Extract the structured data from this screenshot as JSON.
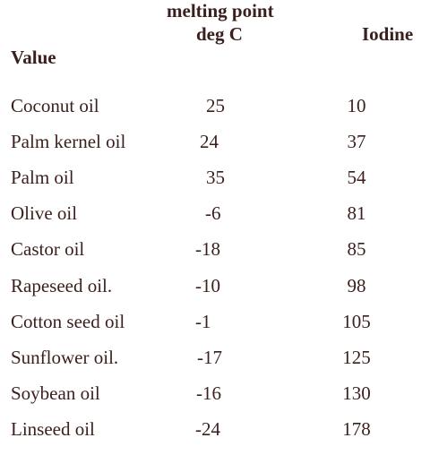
{
  "header": {
    "melting_point_line1": "melting point",
    "melting_point_line2": "deg C",
    "iodine": "Iodine",
    "value": "Value"
  },
  "rows": [
    {
      "name": "Coconut oil",
      "melting_point": "25",
      "iodine": "10"
    },
    {
      "name": "Palm kernel oil",
      "melting_point": "24",
      "iodine": "37"
    },
    {
      "name": "Palm oil",
      "melting_point": "35",
      "iodine": "54"
    },
    {
      "name": "Olive oil",
      "melting_point": "-6",
      "iodine": "81"
    },
    {
      "name": "Castor oil",
      "melting_point": "-18",
      "iodine": "85"
    },
    {
      "name": "Rapeseed oil.",
      "melting_point": "-10",
      "iodine": "98"
    },
    {
      "name": "Cotton seed oil",
      "melting_point": "-1",
      "iodine": "105"
    },
    {
      "name": "Sunflower oil.",
      "melting_point": "-17",
      "iodine": "125"
    },
    {
      "name": "Soybean oil",
      "melting_point": "-16",
      "iodine": "130"
    },
    {
      "name": "Linseed oil",
      "melting_point": "-24",
      "iodine": "178"
    }
  ]
}
